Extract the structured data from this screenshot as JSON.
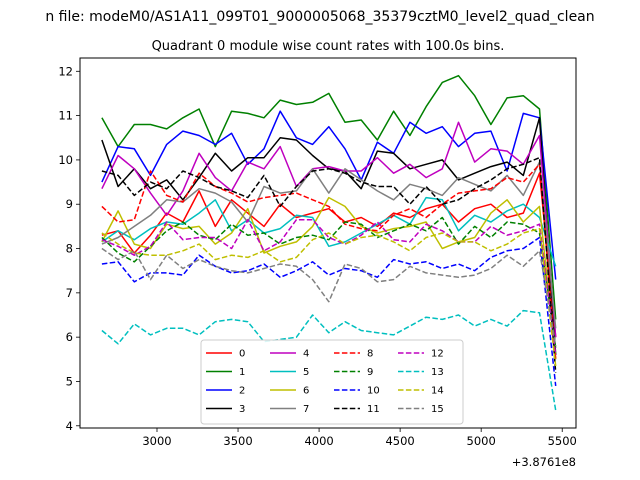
{
  "chart_data": {
    "type": "line",
    "suptitle": "n file: modeM0/AS1A11_099T01_9000005068_35379cztM0_level2_quad_clean",
    "title": "Quadrant 0 module wise count rates with 100.0s bins.",
    "xlabel": "",
    "ylabel": "",
    "x_offset_label": "+3.8761e8",
    "xlim": [
      2525,
      5585
    ],
    "ylim": [
      3.95,
      12.3
    ],
    "xticks": [
      3000,
      3500,
      4000,
      4500,
      5000,
      5500
    ],
    "xtick_labels": [
      "3000",
      "3500",
      "4000",
      "4500",
      "5000",
      "5500"
    ],
    "yticks": [
      4,
      5,
      6,
      7,
      8,
      9,
      10,
      11,
      12
    ],
    "ytick_labels": [
      "4",
      "5",
      "6",
      "7",
      "8",
      "9",
      "10",
      "11",
      "12"
    ],
    "x": [
      2660,
      2760,
      2860,
      2960,
      3060,
      3160,
      3260,
      3360,
      3460,
      3560,
      3660,
      3760,
      3860,
      3960,
      4060,
      4160,
      4260,
      4360,
      4460,
      4560,
      4660,
      4760,
      4860,
      4960,
      5060,
      5160,
      5260,
      5360,
      5460
    ],
    "legend_placement": "lower center",
    "series": [
      {
        "name": "0",
        "color": "#ff0000",
        "dash": "solid",
        "values": [
          8.3,
          8.4,
          7.9,
          8.3,
          8.8,
          8.6,
          9.3,
          8.5,
          9.1,
          8.8,
          8.5,
          9.0,
          8.7,
          8.8,
          8.9,
          8.6,
          8.7,
          8.5,
          8.8,
          8.7,
          8.9,
          9.0,
          8.6,
          8.9,
          9.0,
          8.7,
          8.8,
          9.7,
          6.0
        ]
      },
      {
        "name": "1",
        "color": "#008000",
        "dash": "solid",
        "values": [
          10.95,
          10.3,
          10.8,
          10.8,
          10.7,
          10.95,
          11.15,
          10.3,
          11.1,
          11.05,
          10.95,
          11.35,
          11.25,
          11.3,
          11.5,
          10.85,
          10.9,
          10.45,
          11.1,
          10.55,
          11.2,
          11.75,
          11.9,
          11.45,
          10.8,
          11.4,
          11.45,
          11.15,
          6.4
        ]
      },
      {
        "name": "2",
        "color": "#0000ff",
        "dash": "solid",
        "values": [
          9.5,
          10.3,
          10.25,
          9.65,
          10.35,
          10.65,
          10.55,
          10.35,
          10.6,
          9.9,
          10.25,
          11.1,
          10.5,
          10.35,
          10.75,
          10.25,
          9.55,
          10.4,
          10.15,
          10.85,
          10.6,
          10.75,
          10.3,
          10.6,
          10.65,
          9.75,
          11.05,
          10.95,
          7.3
        ]
      },
      {
        "name": "3",
        "color": "#000000",
        "dash": "solid",
        "values": [
          10.45,
          9.4,
          9.8,
          9.35,
          9.55,
          9.1,
          9.6,
          10.15,
          9.75,
          10.05,
          10.05,
          10.5,
          10.45,
          10.1,
          9.8,
          9.75,
          9.35,
          10.2,
          10.15,
          9.8,
          9.9,
          10.0,
          9.55,
          9.7,
          9.85,
          9.95,
          9.65,
          10.95,
          5.6
        ]
      },
      {
        "name": "4",
        "color": "#bf00bf",
        "dash": "solid",
        "values": [
          9.35,
          10.1,
          9.8,
          9.25,
          8.75,
          9.3,
          10.15,
          9.6,
          9.3,
          9.95,
          9.8,
          10.3,
          9.4,
          9.8,
          9.85,
          9.75,
          9.75,
          10.05,
          9.7,
          9.9,
          9.6,
          9.8,
          10.85,
          9.95,
          10.25,
          10.2,
          9.9,
          10.55,
          6.0
        ]
      },
      {
        "name": "5",
        "color": "#00bfbf",
        "dash": "solid",
        "values": [
          8.15,
          8.4,
          8.2,
          8.45,
          8.6,
          8.55,
          8.8,
          9.1,
          8.4,
          8.65,
          8.35,
          8.45,
          8.75,
          8.7,
          8.05,
          8.15,
          8.35,
          8.55,
          8.75,
          8.55,
          9.15,
          9.1,
          8.4,
          8.75,
          8.6,
          8.85,
          9.0,
          8.7,
          7.6
        ]
      },
      {
        "name": "6",
        "color": "#bfbf00",
        "dash": "solid",
        "values": [
          8.15,
          8.85,
          8.1,
          8.0,
          8.55,
          8.45,
          8.5,
          8.1,
          8.35,
          8.9,
          7.9,
          8.05,
          8.15,
          8.5,
          9.15,
          8.95,
          8.5,
          8.35,
          8.45,
          8.5,
          8.6,
          8.0,
          8.15,
          8.25,
          8.8,
          9.1,
          8.6,
          8.95,
          5.5
        ]
      },
      {
        "name": "7",
        "color": "#808080",
        "dash": "solid",
        "values": [
          8.1,
          8.25,
          8.5,
          8.75,
          9.1,
          9.05,
          9.35,
          9.25,
          9.05,
          8.6,
          9.4,
          9.25,
          9.3,
          9.8,
          9.25,
          9.8,
          9.55,
          9.3,
          9.1,
          9.45,
          9.35,
          9.2,
          9.6,
          9.45,
          9.3,
          9.65,
          9.2,
          9.95,
          6.2
        ]
      },
      {
        "name": "8",
        "color": "#ff0000",
        "dash": "dashed",
        "values": [
          8.95,
          8.6,
          8.65,
          9.75,
          9.2,
          9.05,
          9.7,
          9.4,
          9.25,
          9.05,
          9.15,
          9.2,
          9.25,
          9.1,
          8.95,
          8.55,
          8.45,
          8.4,
          8.75,
          8.9,
          8.7,
          9.0,
          9.25,
          9.3,
          9.35,
          9.6,
          9.5,
          9.9,
          5.5
        ]
      },
      {
        "name": "9",
        "color": "#008000",
        "dash": "dashed",
        "values": [
          8.25,
          7.9,
          7.7,
          8.05,
          8.4,
          8.6,
          8.3,
          8.2,
          8.55,
          8.3,
          8.35,
          8.1,
          8.25,
          8.3,
          8.2,
          8.6,
          8.55,
          8.25,
          8.4,
          8.55,
          8.4,
          8.7,
          8.1,
          8.5,
          8.25,
          8.6,
          8.55,
          8.35,
          5.75
        ]
      },
      {
        "name": "10",
        "color": "#0000ff",
        "dash": "dashed",
        "values": [
          7.65,
          7.7,
          7.25,
          7.45,
          7.45,
          7.4,
          7.85,
          7.6,
          7.45,
          7.5,
          7.65,
          7.35,
          7.5,
          7.7,
          7.4,
          7.55,
          7.5,
          7.35,
          7.75,
          7.65,
          7.7,
          7.55,
          7.65,
          7.5,
          7.8,
          7.95,
          8.0,
          8.25,
          4.9
        ]
      },
      {
        "name": "11",
        "color": "#000000",
        "dash": "dashed",
        "values": [
          9.75,
          9.65,
          9.2,
          9.5,
          9.35,
          9.75,
          9.6,
          9.4,
          9.3,
          9.15,
          9.65,
          8.95,
          9.4,
          9.75,
          9.8,
          9.7,
          9.5,
          9.4,
          9.4,
          9.0,
          9.4,
          9.0,
          9.1,
          9.35,
          9.55,
          9.8,
          9.9,
          10.05,
          5.2
        ]
      },
      {
        "name": "12",
        "color": "#bf00bf",
        "dash": "dashed",
        "values": [
          8.2,
          8.05,
          7.85,
          8.05,
          8.6,
          8.2,
          8.25,
          8.25,
          8.0,
          8.65,
          7.95,
          8.15,
          8.65,
          8.65,
          8.25,
          8.1,
          8.3,
          8.6,
          8.2,
          8.15,
          8.55,
          8.4,
          8.15,
          8.15,
          8.5,
          8.3,
          8.4,
          8.55,
          5.6
        ]
      },
      {
        "name": "13",
        "color": "#00bfbf",
        "dash": "dashed",
        "values": [
          6.15,
          5.85,
          6.3,
          6.05,
          6.2,
          6.2,
          6.05,
          6.35,
          6.4,
          6.35,
          5.9,
          5.95,
          6.0,
          6.5,
          6.1,
          6.35,
          6.15,
          6.1,
          6.05,
          6.25,
          6.45,
          6.4,
          6.5,
          6.25,
          6.4,
          6.25,
          6.6,
          6.55,
          4.35
        ]
      },
      {
        "name": "14",
        "color": "#bfbf00",
        "dash": "dashed",
        "values": [
          8.35,
          8.1,
          7.9,
          7.85,
          7.85,
          7.95,
          8.1,
          7.75,
          7.85,
          7.8,
          7.95,
          7.7,
          7.8,
          8.2,
          8.35,
          8.1,
          8.25,
          8.3,
          8.15,
          7.95,
          8.25,
          8.35,
          8.15,
          8.15,
          7.95,
          8.1,
          8.35,
          8.45,
          5.35
        ]
      },
      {
        "name": "15",
        "color": "#808080",
        "dash": "dashed",
        "values": [
          8.0,
          7.75,
          7.95,
          7.3,
          7.85,
          7.55,
          7.75,
          7.6,
          7.5,
          7.45,
          7.55,
          7.65,
          7.6,
          7.3,
          6.8,
          7.65,
          7.55,
          7.25,
          7.3,
          7.6,
          7.45,
          7.4,
          7.35,
          7.4,
          7.55,
          7.85,
          7.6,
          7.95,
          5.8
        ]
      }
    ]
  }
}
